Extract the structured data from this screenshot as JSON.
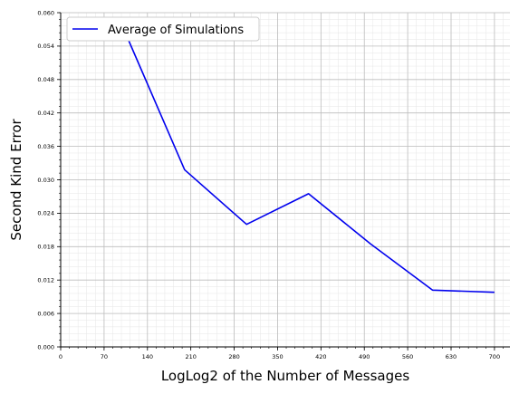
{
  "chart_data": {
    "type": "line",
    "title": "",
    "xlabel": "LogLog2 of the Number of Messages",
    "ylabel": "Second Kind Error",
    "xlim": [
      0,
      725
    ],
    "ylim": [
      0,
      0.06
    ],
    "x_ticks": [
      "0",
      "70",
      "140",
      "210",
      "280",
      "350",
      "420",
      "490",
      "560",
      "630",
      "700"
    ],
    "y_ticks": [
      "0.000",
      "0.006",
      "0.012",
      "0.018",
      "0.024",
      "0.030",
      "0.036",
      "0.042",
      "0.048",
      "0.054",
      "0.060"
    ],
    "grid": true,
    "legend": "upper-left",
    "series": [
      {
        "name": "Average of Simulations",
        "color": "#0000ee",
        "x": [
          100,
          200,
          300,
          400,
          500,
          600,
          700
        ],
        "y": [
          0.0575,
          0.0318,
          0.022,
          0.0275,
          0.0185,
          0.0102,
          0.0098
        ]
      }
    ]
  }
}
